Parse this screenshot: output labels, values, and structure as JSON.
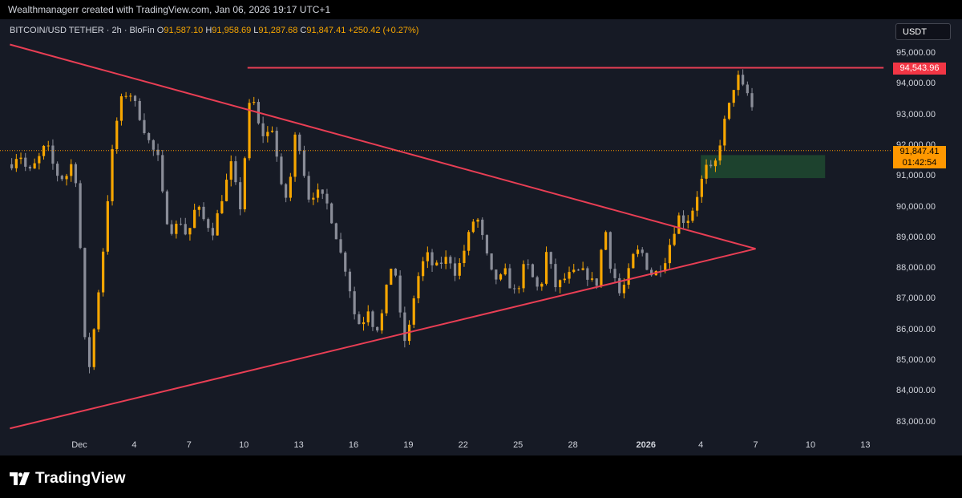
{
  "header": {
    "attribution": "Wealthmanagerr created with TradingView.com, Jan 06, 2026 19:17 UTC+1"
  },
  "legend": {
    "symbol": "BITCOIN/USD TETHER · 2h · BloFin",
    "o_label": "O",
    "o_value": "91,587.10",
    "h_label": "H",
    "h_value": "91,958.69",
    "l_label": "L",
    "l_value": "91,287.68",
    "c_label": "C",
    "c_value": "91,847.41",
    "change": "+250.42 (+0.27%)"
  },
  "currency_button": "USDT",
  "footer": {
    "brand": "TradingView"
  },
  "colors": {
    "background": "#161a25",
    "bull_candle": "#f7a600",
    "bear_candle": "#8a8d98",
    "trendline": "#e83e54",
    "zone": "#1f4a30",
    "last_price": "#ff9800"
  },
  "chart_data": {
    "type": "candlestick",
    "symbol": "BITCOIN/USD TETHER",
    "interval": "2h",
    "exchange": "BloFin",
    "ylim": [
      82700,
      95500
    ],
    "y_ticks": [
      {
        "value": 95000,
        "label": "95,000.00"
      },
      {
        "value": 94000,
        "label": "94,000.00"
      },
      {
        "value": 93000,
        "label": "93,000.00"
      },
      {
        "value": 92000,
        "label": "92,000.00"
      },
      {
        "value": 91000,
        "label": "91,000.00"
      },
      {
        "value": 90000,
        "label": "90,000.00"
      },
      {
        "value": 89000,
        "label": "89,000.00"
      },
      {
        "value": 88000,
        "label": "88,000.00"
      },
      {
        "value": 87000,
        "label": "87,000.00"
      },
      {
        "value": 86000,
        "label": "86,000.00"
      },
      {
        "value": 85000,
        "label": "85,000.00"
      },
      {
        "value": 84000,
        "label": "84,000.00"
      },
      {
        "value": 83000,
        "label": "83,000.00"
      }
    ],
    "x_ticks": [
      {
        "day": 0,
        "label": "Dec",
        "bold": false
      },
      {
        "day": 3,
        "label": "4",
        "bold": false
      },
      {
        "day": 6,
        "label": "7",
        "bold": false
      },
      {
        "day": 9,
        "label": "10",
        "bold": false
      },
      {
        "day": 12,
        "label": "13",
        "bold": false
      },
      {
        "day": 15,
        "label": "16",
        "bold": false
      },
      {
        "day": 18,
        "label": "19",
        "bold": false
      },
      {
        "day": 21,
        "label": "22",
        "bold": false
      },
      {
        "day": 24,
        "label": "25",
        "bold": false
      },
      {
        "day": 27,
        "label": "28",
        "bold": false
      },
      {
        "day": 31,
        "label": "2026",
        "bold": true
      },
      {
        "day": 34,
        "label": "4",
        "bold": false
      },
      {
        "day": 37,
        "label": "7",
        "bold": false
      },
      {
        "day": 40,
        "label": "10",
        "bold": false
      },
      {
        "day": 43,
        "label": "13",
        "bold": false
      }
    ],
    "path_points": [
      [
        -3.7,
        91400
      ],
      [
        -3.3,
        91800
      ],
      [
        -2.8,
        91100
      ],
      [
        -2.3,
        91500
      ],
      [
        -1.8,
        92100
      ],
      [
        -1.3,
        91100
      ],
      [
        -0.8,
        90900
      ],
      [
        -0.3,
        91600
      ],
      [
        0.0,
        89500
      ],
      [
        0.2,
        86200
      ],
      [
        0.5,
        84600
      ],
      [
        0.9,
        86500
      ],
      [
        1.3,
        88600
      ],
      [
        1.6,
        90600
      ],
      [
        1.9,
        92400
      ],
      [
        2.3,
        93500
      ],
      [
        2.7,
        93800
      ],
      [
        3.1,
        93300
      ],
      [
        3.5,
        92600
      ],
      [
        3.9,
        92000
      ],
      [
        4.3,
        91600
      ],
      [
        4.7,
        89700
      ],
      [
        5.1,
        89200
      ],
      [
        5.5,
        89600
      ],
      [
        5.9,
        89000
      ],
      [
        6.4,
        90100
      ],
      [
        6.8,
        89600
      ],
      [
        7.3,
        89200
      ],
      [
        7.8,
        90300
      ],
      [
        8.3,
        91400
      ],
      [
        8.8,
        90000
      ],
      [
        9.2,
        92600
      ],
      [
        9.4,
        94000
      ],
      [
        9.7,
        92800
      ],
      [
        10.1,
        92300
      ],
      [
        10.6,
        92600
      ],
      [
        11.0,
        90700
      ],
      [
        11.4,
        90200
      ],
      [
        11.8,
        92300
      ],
      [
        12.1,
        91900
      ],
      [
        12.5,
        90300
      ],
      [
        13.0,
        90500
      ],
      [
        13.5,
        90200
      ],
      [
        13.9,
        89400
      ],
      [
        14.3,
        88500
      ],
      [
        14.7,
        87700
      ],
      [
        15.0,
        86600
      ],
      [
        15.4,
        86100
      ],
      [
        15.8,
        86700
      ],
      [
        16.2,
        85900
      ],
      [
        16.6,
        86600
      ],
      [
        17.0,
        88100
      ],
      [
        17.3,
        87800
      ],
      [
        17.6,
        86200
      ],
      [
        17.9,
        85400
      ],
      [
        18.2,
        86800
      ],
      [
        18.6,
        87900
      ],
      [
        19.0,
        88500
      ],
      [
        19.4,
        88000
      ],
      [
        19.8,
        88200
      ],
      [
        20.2,
        88400
      ],
      [
        20.6,
        87800
      ],
      [
        21.0,
        88500
      ],
      [
        21.4,
        89300
      ],
      [
        21.7,
        89800
      ],
      [
        22.1,
        88900
      ],
      [
        22.5,
        87900
      ],
      [
        22.9,
        87600
      ],
      [
        23.3,
        87900
      ],
      [
        23.7,
        87200
      ],
      [
        24.1,
        87500
      ],
      [
        24.4,
        88300
      ],
      [
        24.8,
        87700
      ],
      [
        25.2,
        87200
      ],
      [
        25.6,
        88700
      ],
      [
        26.0,
        87400
      ],
      [
        26.4,
        87600
      ],
      [
        26.8,
        87800
      ],
      [
        27.2,
        87900
      ],
      [
        27.6,
        87900
      ],
      [
        28.0,
        87600
      ],
      [
        28.4,
        87500
      ],
      [
        28.7,
        89700
      ],
      [
        29.0,
        88200
      ],
      [
        29.3,
        87700
      ],
      [
        29.6,
        87100
      ],
      [
        30.0,
        87800
      ],
      [
        30.4,
        88600
      ],
      [
        30.8,
        88500
      ],
      [
        31.2,
        87800
      ],
      [
        31.6,
        87900
      ],
      [
        32.0,
        88200
      ],
      [
        32.4,
        89000
      ],
      [
        32.8,
        89700
      ],
      [
        33.2,
        89500
      ],
      [
        33.6,
        90000
      ],
      [
        34.0,
        90800
      ],
      [
        34.3,
        91300
      ],
      [
        34.6,
        91200
      ],
      [
        34.9,
        91600
      ],
      [
        35.2,
        92600
      ],
      [
        35.5,
        93200
      ],
      [
        35.8,
        93900
      ],
      [
        36.1,
        94300
      ],
      [
        36.4,
        93700
      ],
      [
        36.7,
        93700
      ],
      [
        36.9,
        92800
      ],
      [
        37.0,
        91850
      ]
    ],
    "trendlines": {
      "upper": {
        "from": [
          -3.8,
          95300
        ],
        "to": [
          37.0,
          88650
        ]
      },
      "lower": {
        "from": [
          -3.8,
          82800
        ],
        "to": [
          37.0,
          88650
        ]
      },
      "resistance": {
        "from": [
          9.2,
          94543.96
        ],
        "to": [
          44.0,
          94543.96
        ]
      }
    },
    "zone": {
      "day_from": 34.0,
      "day_to": 40.8,
      "price_from": 90950,
      "price_to": 91700
    },
    "resistance_level": {
      "value": 94543.96,
      "label": "94,543.96"
    },
    "last_price": {
      "value": 91847.41,
      "label": "91,847.41",
      "countdown": "01:42:54"
    }
  }
}
